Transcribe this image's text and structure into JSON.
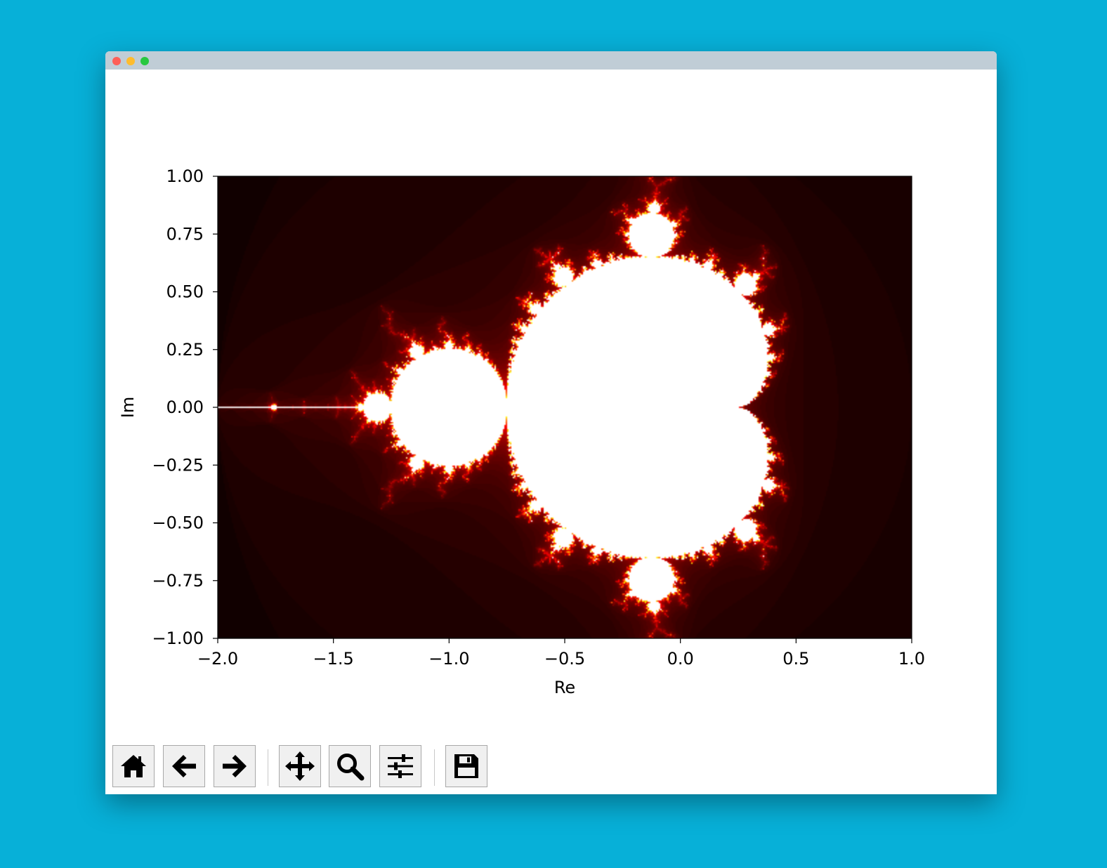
{
  "window": {
    "controls": [
      "close-icon",
      "minimize-icon",
      "maximize-icon"
    ]
  },
  "chart_data": {
    "type": "heatmap",
    "title": "",
    "xlabel": "Re",
    "ylabel": "Im",
    "xlim": [
      -2.0,
      1.0
    ],
    "ylim": [
      -1.0,
      1.0
    ],
    "x_ticks": [
      -2.0,
      -1.5,
      -1.0,
      -0.5,
      0.0,
      0.5,
      1.0
    ],
    "x_tick_labels": [
      "−2.0",
      "−1.5",
      "−1.0",
      "−0.5",
      "0.0",
      "0.5",
      "1.0"
    ],
    "y_ticks": [
      1.0,
      0.75,
      0.5,
      0.25,
      0.0,
      -0.25,
      -0.5,
      -0.75,
      -1.0
    ],
    "y_tick_labels": [
      "1.00",
      "0.75",
      "0.50",
      "0.25",
      "0.00",
      "−0.25",
      "−0.50",
      "−0.75",
      "−1.00"
    ],
    "colormap": "hot",
    "grid": false
  },
  "toolbar": {
    "buttons": [
      {
        "name": "home-button",
        "icon": "home-icon"
      },
      {
        "name": "back-button",
        "icon": "arrow-left-icon"
      },
      {
        "name": "forward-button",
        "icon": "arrow-right-icon"
      },
      {
        "name": "pan-button",
        "icon": "move-icon"
      },
      {
        "name": "zoom-button",
        "icon": "magnifier-icon"
      },
      {
        "name": "subplots-button",
        "icon": "sliders-icon"
      },
      {
        "name": "save-button",
        "icon": "floppy-icon"
      }
    ]
  }
}
